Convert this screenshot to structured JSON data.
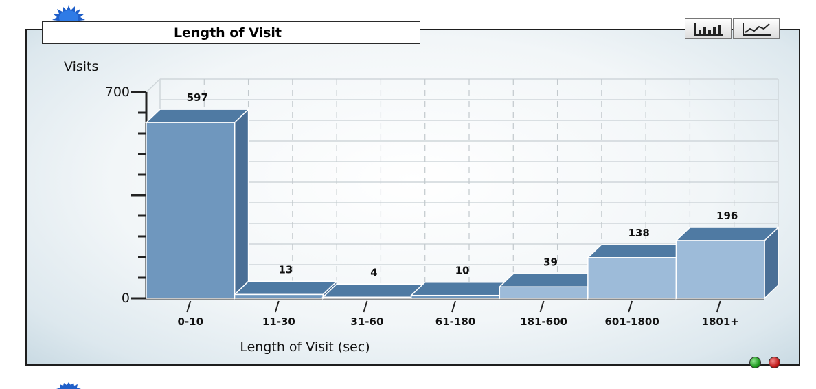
{
  "header": {
    "title": "Length of Visit"
  },
  "toolbar": {
    "bar_view_icon": "bar-chart-icon",
    "line_view_icon": "line-chart-icon"
  },
  "status": {
    "ok_color": "#1f9a1f",
    "stop_color": "#c11a1a"
  },
  "chart_data": {
    "type": "bar",
    "title": "Length of Visit",
    "xlabel": "Length of Visit (sec)",
    "ylabel": "Visits",
    "categories": [
      "0-10",
      "11-30",
      "31-60",
      "61-180",
      "181-600",
      "601-1800",
      "1801+"
    ],
    "values": [
      597,
      13,
      4,
      10,
      39,
      138,
      196
    ],
    "ylim": [
      0,
      700
    ],
    "yticks": [
      {
        "value": 0,
        "label": "0"
      },
      {
        "value": 700,
        "label": "700"
      }
    ],
    "grid": true,
    "legend": "none",
    "colors": {
      "bar_front": "#6f97be",
      "bar_front_light": "#9dbbd9",
      "bar_top": "#4f7aa3",
      "bar_side": "#4a6f96"
    }
  }
}
